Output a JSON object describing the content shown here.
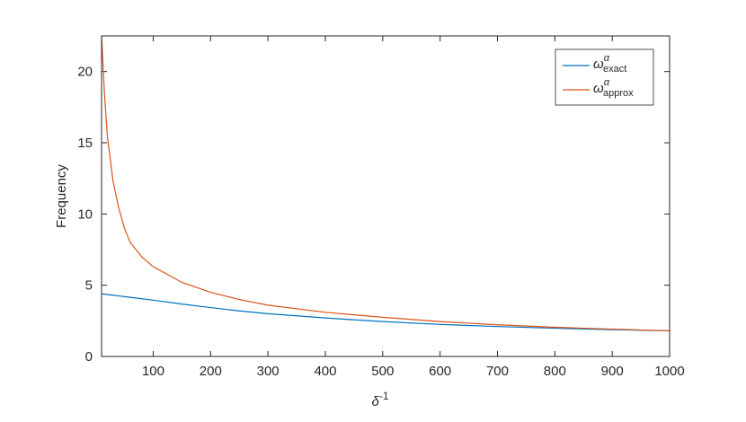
{
  "chart_data": {
    "type": "line",
    "xlabel": "δ",
    "xlabel_superscript": "-1",
    "ylabel": "Frequency",
    "x": [
      10,
      15,
      20,
      30,
      40,
      50,
      60,
      80,
      100,
      150,
      200,
      250,
      300,
      400,
      500,
      600,
      700,
      800,
      900,
      1000
    ],
    "series": [
      {
        "name": "ω",
        "name_superscript": "α",
        "name_subscript": "exact",
        "color": "#0072bd",
        "values": [
          4.4,
          4.38,
          4.35,
          4.3,
          4.25,
          4.2,
          4.15,
          4.05,
          3.95,
          3.68,
          3.43,
          3.2,
          3.0,
          2.7,
          2.45,
          2.25,
          2.1,
          1.98,
          1.88,
          1.8
        ]
      },
      {
        "name": "ω",
        "name_superscript": "α",
        "name_subscript": "approx",
        "color": "#d95319",
        "values": [
          22.5,
          18.5,
          15.5,
          12.3,
          10.4,
          9.0,
          8.0,
          7.0,
          6.3,
          5.2,
          4.5,
          4.0,
          3.6,
          3.1,
          2.75,
          2.45,
          2.22,
          2.05,
          1.92,
          1.8
        ]
      }
    ],
    "xlim": [
      10,
      1000
    ],
    "xticks": [
      100,
      200,
      300,
      400,
      500,
      600,
      700,
      800,
      900,
      1000
    ],
    "ylim": [
      0,
      22.5
    ],
    "yticks": [
      0,
      5,
      10,
      15,
      20
    ],
    "legend": "northeast",
    "box": true
  }
}
